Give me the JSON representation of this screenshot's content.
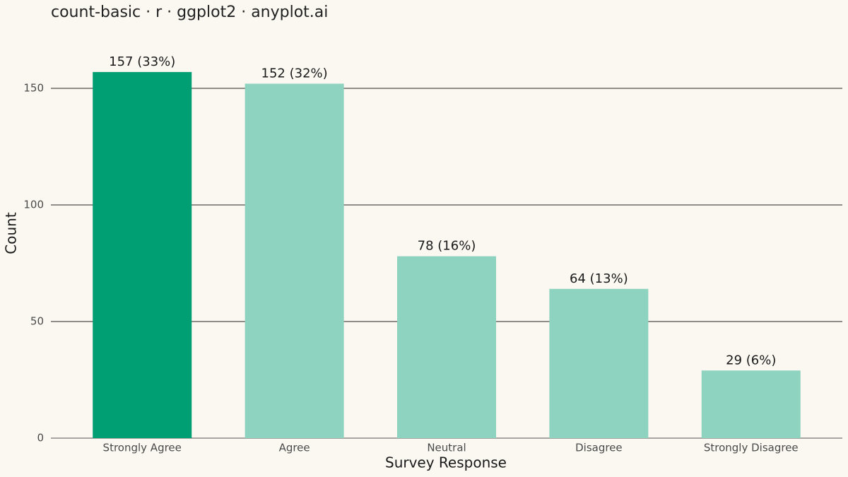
{
  "chart_data": {
    "type": "bar",
    "title": "count-basic · r · ggplot2 · anyplot.ai",
    "x_label": "Survey Response",
    "y_label": "Count",
    "categories": [
      "Strongly Agree",
      "Agree",
      "Neutral",
      "Disagree",
      "Strongly Disagree"
    ],
    "values": [
      157,
      152,
      78,
      64,
      29
    ],
    "value_labels": [
      "157 (33%)",
      "152 (32%)",
      "78 (16%)",
      "64 (13%)",
      "29 (6%)"
    ],
    "colors": [
      "#009E73",
      "#8DD3C0",
      "#8DD3C0",
      "#8DD3C0",
      "#8DD3C0"
    ],
    "ylim": [
      0,
      165
    ],
    "yticks": [
      0,
      50,
      100,
      150
    ],
    "grid": true
  }
}
